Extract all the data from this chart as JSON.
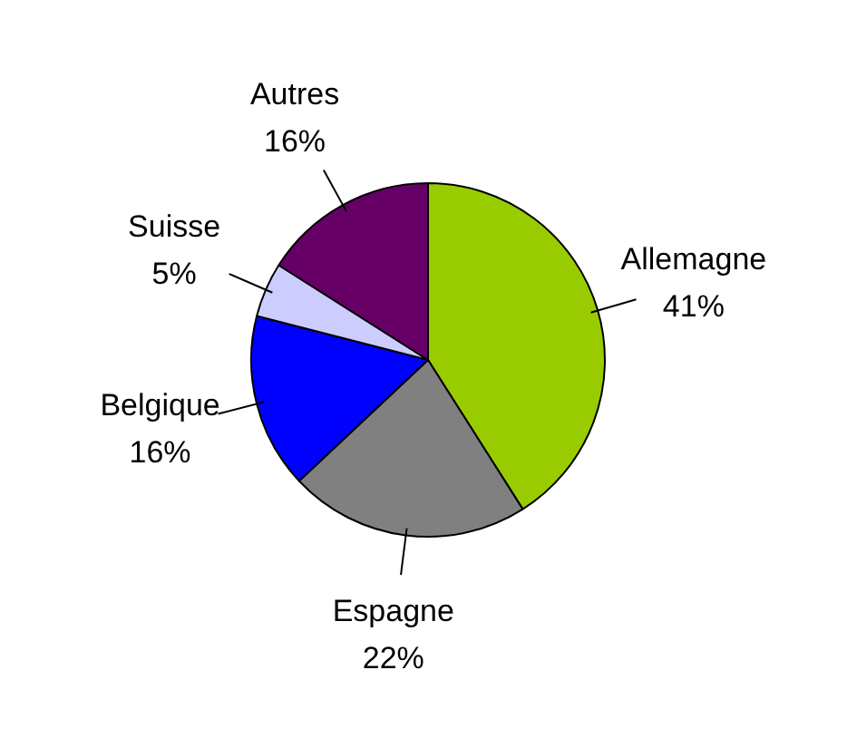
{
  "chart_data": {
    "type": "pie",
    "categories": [
      "Allemagne",
      "Espagne",
      "Belgique",
      "Suisse",
      "Autres"
    ],
    "values": [
      41,
      22,
      16,
      5,
      16
    ],
    "value_labels": [
      "41%",
      "22%",
      "16%",
      "5%",
      "16%"
    ],
    "colors": [
      "#99cc00",
      "#808080",
      "#0000ff",
      "#ccccff",
      "#660066"
    ],
    "legend": false
  }
}
